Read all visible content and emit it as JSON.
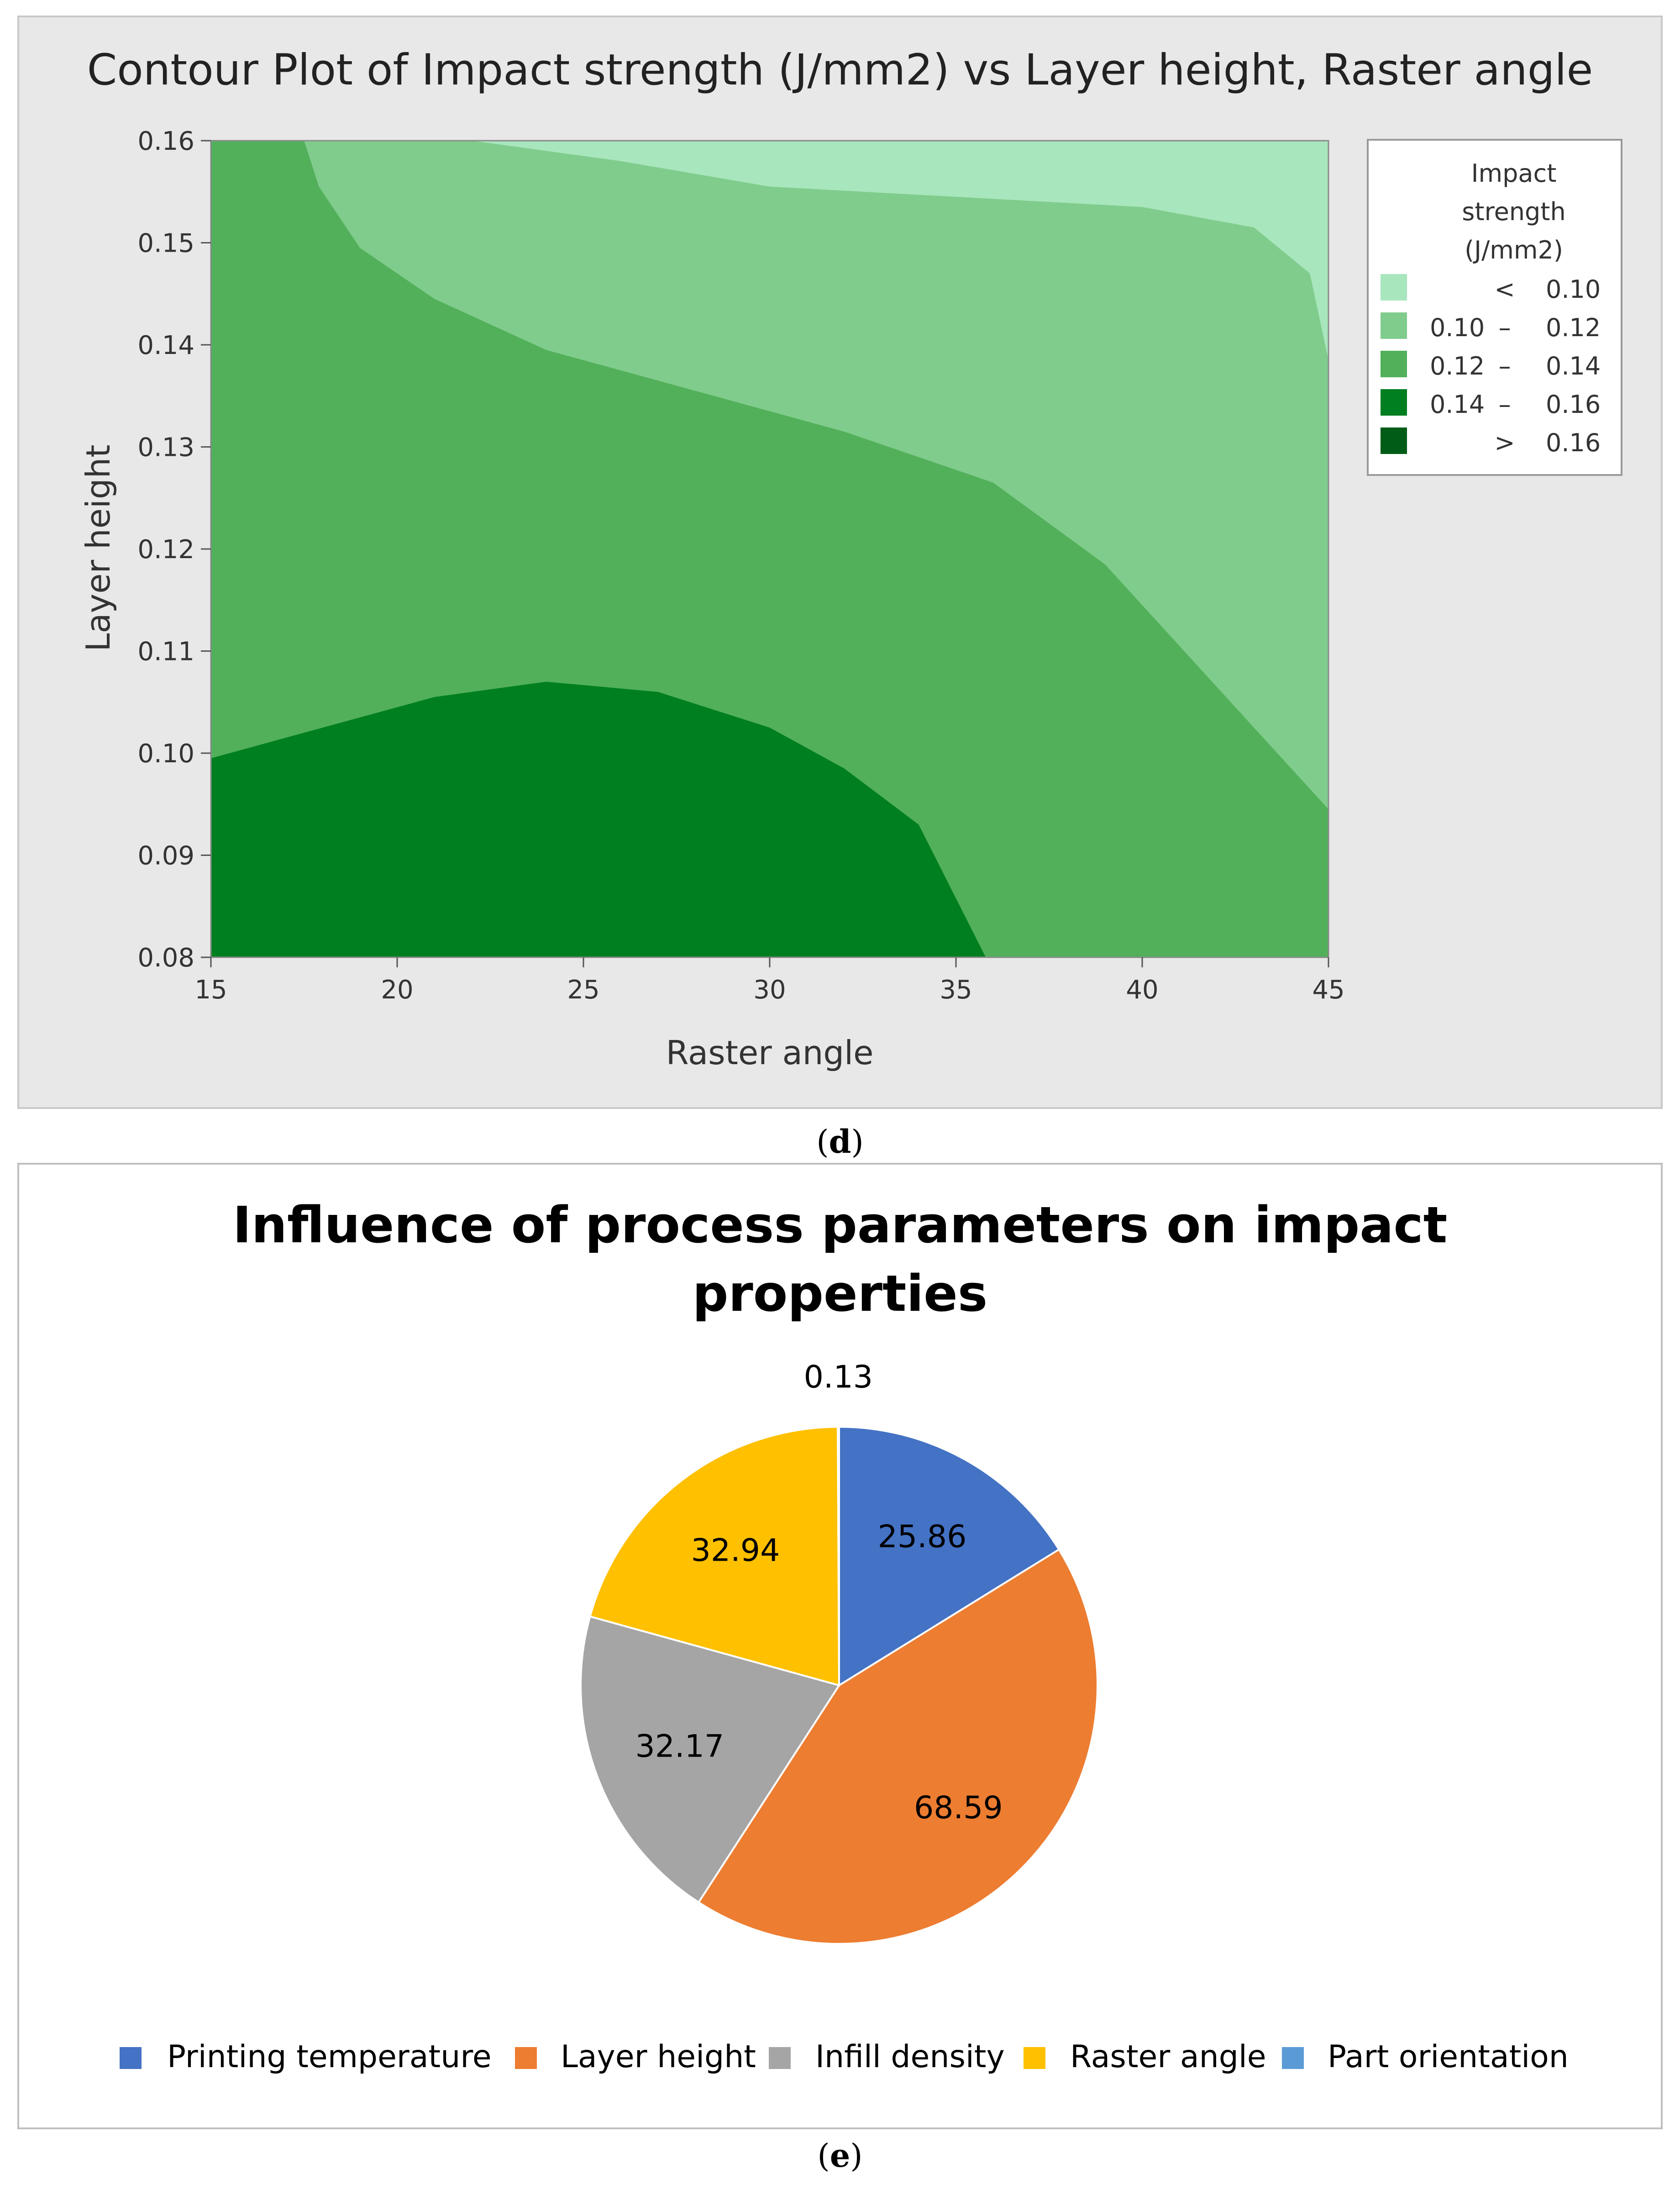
{
  "contour": {
    "title": "Contour Plot of Impact strength (J/mm2) vs Layer height, Raster angle",
    "xlabel": "Raster angle",
    "ylabel": "Layer height",
    "x_ticks": [
      "15",
      "20",
      "25",
      "30",
      "35",
      "40",
      "45"
    ],
    "y_ticks": [
      "0.08",
      "0.09",
      "0.10",
      "0.11",
      "0.12",
      "0.13",
      "0.14",
      "0.15",
      "0.16"
    ],
    "legend": {
      "title_lines": [
        "Impact",
        "strength",
        "(J/mm2)"
      ],
      "rows": [
        {
          "left": "",
          "sep": "<",
          "right": "0.10",
          "color": "#a8e6bd"
        },
        {
          "left": "0.10",
          "sep": "–",
          "right": "0.12",
          "color": "#80cc8c"
        },
        {
          "left": "0.12",
          "sep": "–",
          "right": "0.14",
          "color": "#52b05a"
        },
        {
          "left": "0.14",
          "sep": "–",
          "right": "0.16",
          "color": "#007f20"
        },
        {
          "left": "",
          "sep": ">",
          "right": "0.16",
          "color": "#005c16"
        }
      ]
    },
    "caption_open": "(",
    "caption_letter": "d",
    "caption_close": ")"
  },
  "chart_data": [
    {
      "type": "contour",
      "title": "Contour Plot of Impact strength (J/mm2) vs Layer height, Raster angle",
      "xlabel": "Raster angle",
      "ylabel": "Layer height",
      "xlim": [
        15,
        45
      ],
      "ylim": [
        0.08,
        0.16
      ],
      "levels": [
        {
          "range": "< 0.10",
          "color": "#a8e6bd"
        },
        {
          "range": "0.10 – 0.12",
          "color": "#80cc8c"
        },
        {
          "range": "0.12 – 0.14",
          "color": "#52b05a"
        },
        {
          "range": "0.14 – 0.16",
          "color": "#007f20"
        },
        {
          "range": "> 0.16",
          "color": "#005c16"
        }
      ],
      "boundaries": [
        {
          "name": "0.10",
          "points": [
            [
              22,
              0.16
            ],
            [
              26,
              0.158
            ],
            [
              30,
              0.1555
            ],
            [
              35,
              0.1545
            ],
            [
              40,
              0.1535
            ],
            [
              43,
              0.1515
            ],
            [
              44.5,
              0.147
            ],
            [
              45,
              0.1385
            ]
          ]
        },
        {
          "name": "0.12",
          "points": [
            [
              17.5,
              0.16
            ],
            [
              17.9,
              0.1555
            ],
            [
              19,
              0.1495
            ],
            [
              21,
              0.1445
            ],
            [
              24,
              0.1395
            ],
            [
              28,
              0.1355
            ],
            [
              32,
              0.1315
            ],
            [
              36,
              0.1265
            ],
            [
              39,
              0.1185
            ],
            [
              41,
              0.1105
            ],
            [
              43,
              0.1025
            ],
            [
              45,
              0.0945
            ]
          ]
        },
        {
          "name": "0.14",
          "points": [
            [
              15,
              0.0995
            ],
            [
              18,
              0.1025
            ],
            [
              21,
              0.1055
            ],
            [
              24,
              0.107
            ],
            [
              27,
              0.106
            ],
            [
              30,
              0.1025
            ],
            [
              32,
              0.0985
            ],
            [
              34,
              0.093
            ],
            [
              35.8,
              0.08
            ]
          ]
        }
      ]
    },
    {
      "type": "pie",
      "title": "Influence of process parameters on impact properties",
      "categories": [
        "Printing temperature",
        "Layer height",
        "Infill density",
        "Raster angle",
        "Part orientation"
      ],
      "values": [
        25.86,
        68.59,
        32.17,
        32.94,
        0.13
      ],
      "colors": [
        "#4472c4",
        "#ed7d31",
        "#a5a5a5",
        "#ffc000",
        "#5b9bd5"
      ],
      "legend": "bottom"
    }
  ],
  "pie": {
    "title_line1": "Influence of process parameters on impact",
    "title_line2": "properties",
    "labels": [
      "25.86",
      "68.59",
      "32.17",
      "32.94",
      "0.13"
    ],
    "legend_items": [
      "Printing temperature",
      "Layer height",
      "Infill density",
      "Raster angle",
      "Part orientation"
    ],
    "caption_open": "(",
    "caption_letter": "e",
    "caption_close": ")"
  }
}
